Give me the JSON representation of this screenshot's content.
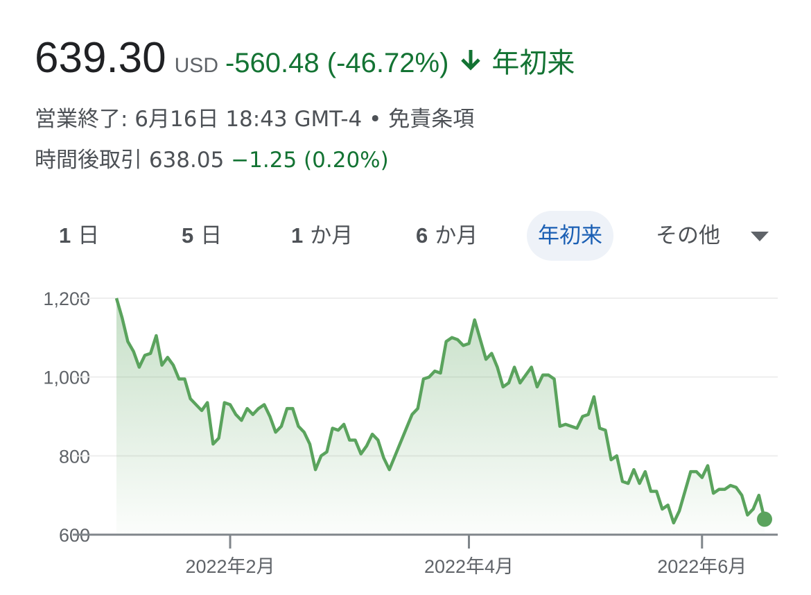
{
  "header": {
    "price": "639.30",
    "currency": "USD",
    "change": "-560.48 (-46.72%)",
    "period": "年初来",
    "status": "営業終了: 6月16日 18:43 GMT-4",
    "separator": "•",
    "disclaimer": "免責条項",
    "after_hours_label": "時間後取引",
    "after_hours_price": "638.05",
    "after_hours_change": "−1.25 (0.20%)"
  },
  "tabs": [
    {
      "num": "1",
      "unit": "日"
    },
    {
      "num": "5",
      "unit": "日"
    },
    {
      "num": "1",
      "unit": "か月"
    },
    {
      "num": "6",
      "unit": "か月"
    },
    {
      "unit": "年初来",
      "selected": true
    },
    {
      "unit": "その他"
    }
  ],
  "chart_data": {
    "type": "line",
    "color": "#5aa35d",
    "grid": true,
    "values": [
      1200,
      1150,
      1090,
      1065,
      1025,
      1055,
      1060,
      1105,
      1030,
      1050,
      1030,
      995,
      995,
      945,
      930,
      915,
      935,
      830,
      845,
      935,
      930,
      905,
      890,
      920,
      905,
      920,
      930,
      900,
      860,
      875,
      920,
      920,
      875,
      860,
      830,
      765,
      800,
      810,
      870,
      865,
      880,
      840,
      840,
      805,
      825,
      855,
      840,
      795,
      765,
      800,
      835,
      870,
      905,
      920,
      995,
      1000,
      1015,
      1010,
      1090,
      1100,
      1095,
      1080,
      1085,
      1145,
      1095,
      1045,
      1060,
      1025,
      975,
      985,
      1025,
      985,
      1005,
      1025,
      975,
      1005,
      1005,
      995,
      875,
      880,
      875,
      870,
      900,
      905,
      950,
      870,
      865,
      790,
      800,
      735,
      730,
      765,
      730,
      760,
      710,
      710,
      665,
      675,
      630,
      660,
      710,
      760,
      760,
      745,
      775,
      705,
      715,
      715,
      725,
      720,
      700,
      650,
      665,
      700,
      639.3
    ],
    "xlim": [
      0,
      114
    ],
    "xticks": [
      {
        "value": 20,
        "label": "2022年2月"
      },
      {
        "value": 62,
        "label": "2022年4月"
      },
      {
        "value": 103,
        "label": "2022年6月"
      }
    ],
    "ylim": [
      600,
      1200
    ],
    "yticks": [
      {
        "value": 600,
        "label": "600"
      },
      {
        "value": 800,
        "label": "800"
      },
      {
        "value": 1000,
        "label": "1,000"
      },
      {
        "value": 1200,
        "label": "1,200"
      }
    ]
  }
}
